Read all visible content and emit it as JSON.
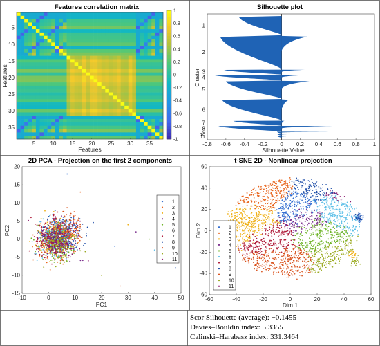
{
  "chart_data": [
    {
      "type": "heatmap",
      "title": "Features correlation matrix",
      "xlabel": "Features",
      "ylabel": "Features",
      "n_features": 38,
      "x_ticks": [
        "5",
        "10",
        "15",
        "20",
        "25",
        "30",
        "35"
      ],
      "y_ticks": [
        "5",
        "10",
        "15",
        "20",
        "25",
        "30",
        "35"
      ],
      "colorbar_ticks": [
        "1",
        "0.8",
        "0.6",
        "0.4",
        "0.2",
        "0",
        "-0.2",
        "-0.4",
        "-0.6",
        "-0.8",
        "-1"
      ],
      "colorbar_range": [
        -1,
        1
      ],
      "colormap": "parula",
      "block_structure": {
        "feature_range": [
          14,
          31
        ],
        "typical_value": 0.6,
        "outside_value": 0.1,
        "diagonal": 1
      }
    },
    {
      "type": "bar",
      "title": "Silhouette plot",
      "xlabel": "Silhouette Value",
      "ylabel": "Cluster",
      "xlim": [
        -0.8,
        1
      ],
      "x_ticks": [
        "-0.8",
        "-0.6",
        "-0.4",
        "-0.2",
        "0",
        "0.2",
        "0.4",
        "0.6",
        "0.8",
        "1"
      ],
      "y_ticks": [
        "1",
        "2",
        "3",
        "4",
        "5",
        "6",
        "7",
        "8",
        "9",
        "10",
        "11"
      ],
      "color": "#1f63b5",
      "clusters": [
        {
          "cluster": "1",
          "share": 0.115,
          "min": -0.46,
          "max": 0.0
        },
        {
          "cluster": "2",
          "share": 0.205,
          "min": -0.66,
          "max": 0.28
        },
        {
          "cluster": "3",
          "share": 0.03,
          "min": -0.62,
          "max": 0.25
        },
        {
          "cluster": "4",
          "share": 0.035,
          "min": -0.74,
          "max": 0.32
        },
        {
          "cluster": "5",
          "share": 0.11,
          "min": -0.6,
          "max": 0.3
        },
        {
          "cluster": "6",
          "share": 0.13,
          "min": -0.64,
          "max": 0.08
        },
        {
          "cluster": "7",
          "share": 0.03,
          "min": -0.52,
          "max": 0.03
        },
        {
          "cluster": "8",
          "share": 0.035,
          "min": -0.68,
          "max": 0.55
        },
        {
          "cluster": "9",
          "share": 0.012,
          "min": -0.05,
          "max": 0.58
        },
        {
          "cluster": "10",
          "share": 0.012,
          "min": -0.05,
          "max": 0.5
        },
        {
          "cluster": "11",
          "share": 0.012,
          "min": -0.05,
          "max": 0.45
        }
      ]
    },
    {
      "type": "scatter",
      "title": "2D PCA - Projection on the first 2 components",
      "xlabel": "PC1",
      "ylabel": "PC2",
      "xlim": [
        -10,
        50
      ],
      "ylim": [
        -15,
        20
      ],
      "x_ticks": [
        "-10",
        "0",
        "10",
        "20",
        "30",
        "40",
        "50"
      ],
      "y_ticks": [
        "-15",
        "-10",
        "-5",
        "0",
        "5",
        "10",
        "15",
        "20"
      ],
      "legend": [
        "1",
        "2",
        "3",
        "4",
        "5",
        "6",
        "7",
        "8",
        "9",
        "10",
        "11"
      ],
      "legend_position": "right",
      "cluster_centers": [
        {
          "cluster": "1",
          "x": 2.5,
          "y": 1.0
        },
        {
          "cluster": "2",
          "x": 0.5,
          "y": -1.0
        },
        {
          "cluster": "3",
          "x": 1.5,
          "y": 0.0
        },
        {
          "cluster": "4",
          "x": 3.5,
          "y": 0.5
        },
        {
          "cluster": "5",
          "x": 2.0,
          "y": -0.5
        },
        {
          "cluster": "6",
          "x": 1.0,
          "y": 0.5
        },
        {
          "cluster": "7",
          "x": 0.0,
          "y": 0.0
        },
        {
          "cluster": "8",
          "x": 5.5,
          "y": 1.5
        },
        {
          "cluster": "9",
          "x": 6.0,
          "y": 2.5
        },
        {
          "cluster": "10",
          "x": 3.0,
          "y": -1.0
        },
        {
          "cluster": "11",
          "x": 2.0,
          "y": 0.0
        }
      ],
      "outliers": [
        {
          "x": 7,
          "y": 18
        },
        {
          "x": 12,
          "y": 13
        },
        {
          "x": 30,
          "y": 4
        },
        {
          "x": 33,
          "y": 2
        },
        {
          "x": 38,
          "y": 0
        },
        {
          "x": 40,
          "y": -3
        },
        {
          "x": 43,
          "y": -5
        },
        {
          "x": 48,
          "y": -8
        },
        {
          "x": 27,
          "y": -13
        },
        {
          "x": 20,
          "y": -10
        },
        {
          "x": 15,
          "y": -6
        },
        {
          "x": 25,
          "y": -2
        }
      ]
    },
    {
      "type": "scatter",
      "title": "t-SNE 2D - Nonlinear projection",
      "xlabel": "Dim 1",
      "ylabel": "Dim 2",
      "xlim": [
        -60,
        60
      ],
      "ylim": [
        -60,
        60
      ],
      "x_ticks": [
        "-60",
        "-40",
        "-20",
        "0",
        "20",
        "40",
        "60"
      ],
      "y_ticks": [
        "-60",
        "-40",
        "-20",
        "0",
        "20",
        "40",
        "60"
      ],
      "legend": [
        "1",
        "2",
        "3",
        "4",
        "5",
        "6",
        "7",
        "8",
        "9",
        "10",
        "11"
      ],
      "legend_position": "left",
      "cluster_regions": [
        {
          "cluster": "1",
          "x": 5,
          "y": 18
        },
        {
          "cluster": "2",
          "x": -20,
          "y": 35
        },
        {
          "cluster": "3",
          "x": -25,
          "y": 8
        },
        {
          "cluster": "4",
          "x": 10,
          "y": 10
        },
        {
          "cluster": "5",
          "x": 18,
          "y": -2
        },
        {
          "cluster": "6",
          "x": 35,
          "y": 20
        },
        {
          "cluster": "7",
          "x": -12,
          "y": -5
        },
        {
          "cluster": "8",
          "x": 25,
          "y": 45
        },
        {
          "cluster": "9",
          "x": -5,
          "y": -30
        },
        {
          "cluster": "10",
          "x": 35,
          "y": -30
        },
        {
          "cluster": "11",
          "x": 42,
          "y": 38
        }
      ]
    }
  ],
  "metrics": {
    "silhouette": "Scor Silhouette (average): −0.1455",
    "davies_bouldin": "Davies–Bouldin index: 5.3355",
    "calinski_harabasz": "Calinski–Harabasz index: 331.3464"
  }
}
